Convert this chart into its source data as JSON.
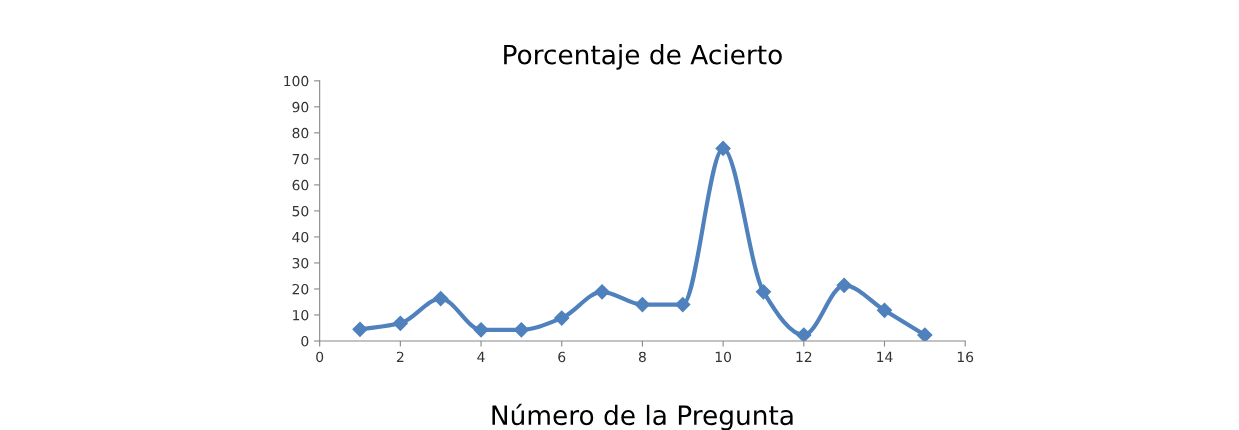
{
  "chart_data": {
    "type": "line",
    "title": "Porcentaje de Acierto",
    "xlabel": "Número de la Pregunta",
    "x": [
      1,
      2,
      3,
      4,
      5,
      6,
      7,
      8,
      9,
      10,
      11,
      12,
      13,
      14,
      15
    ],
    "series": [
      {
        "color": "#4f81bd",
        "values": [
          4.5,
          6.8,
          16.3,
          4.3,
          4.3,
          8.8,
          18.9,
          14,
          14,
          74,
          18.9,
          2.3,
          21.4,
          11.8,
          2.3
        ]
      }
    ],
    "xlim": [
      0,
      16
    ],
    "xticks": [
      0,
      2,
      4,
      6,
      8,
      10,
      12,
      14,
      16
    ],
    "ylim": [
      0,
      100
    ],
    "yticks": [
      0,
      10,
      20,
      30,
      40,
      50,
      60,
      70,
      80,
      90,
      100
    ],
    "grid": false,
    "legend": false,
    "marker": "diamond",
    "line_style": "solid"
  }
}
